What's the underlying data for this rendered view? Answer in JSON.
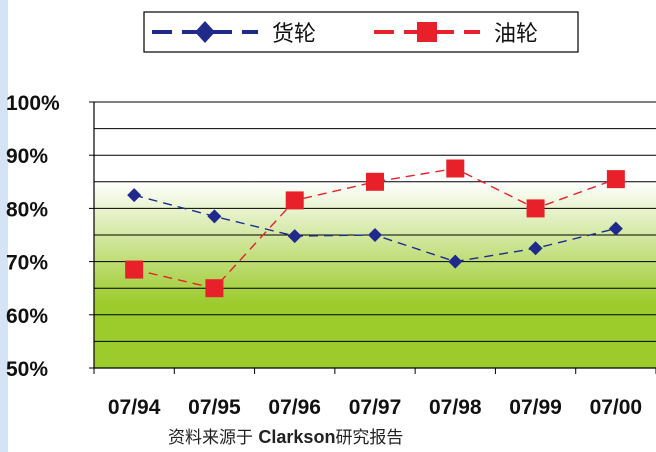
{
  "chart_data": {
    "type": "line",
    "categories": [
      "07/94",
      "07/95",
      "07/96",
      "07/97",
      "07/98",
      "07/99",
      "07/00"
    ],
    "series": [
      {
        "name": "货轮",
        "values": [
          82.5,
          78.5,
          74.8,
          75.0,
          70.0,
          72.5,
          76.2
        ],
        "color": "#1f2a8c",
        "marker": "diamond"
      },
      {
        "name": "油轮",
        "values": [
          68.5,
          65.0,
          81.5,
          85.0,
          87.5,
          80.0,
          85.5
        ],
        "color": "#e8202a",
        "marker": "square"
      }
    ],
    "ylim": [
      50,
      100
    ],
    "yticks": [
      "50%",
      "60%",
      "70%",
      "80%",
      "90%",
      "100%"
    ],
    "ytick_values": [
      50,
      60,
      70,
      80,
      90,
      100
    ],
    "grid": true,
    "legend_position": "top",
    "background_gradient": {
      "top_color": "#ffffff",
      "bottom_color": "#9ccb2c"
    }
  },
  "source": {
    "prefix": "资料来源于 ",
    "bold": "Clarkson",
    "suffix": "研究报告"
  }
}
